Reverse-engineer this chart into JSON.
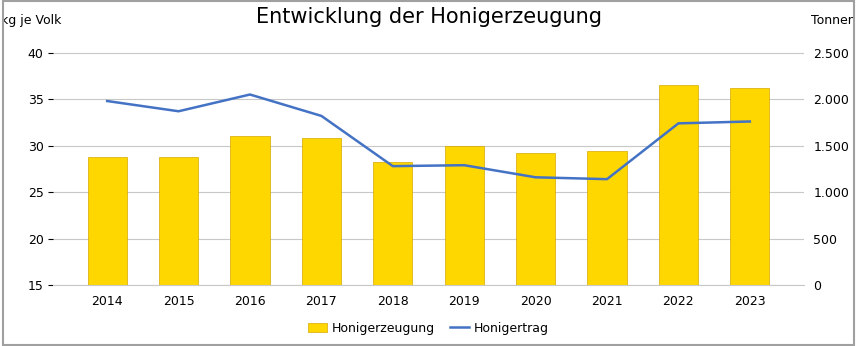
{
  "title": "Entwicklung der Honigerzeugung",
  "ylabel_left": "kg je Volk",
  "ylabel_right": "Tonnen",
  "years": [
    2014,
    2015,
    2016,
    2017,
    2018,
    2019,
    2020,
    2021,
    2022,
    2023
  ],
  "honigerzeugung": [
    28.8,
    28.8,
    31.0,
    30.8,
    28.2,
    30.0,
    29.2,
    29.4,
    36.5,
    36.2
  ],
  "honigertrag": [
    1980,
    1870,
    2050,
    1820,
    1280,
    1290,
    1160,
    1140,
    1740,
    1760
  ],
  "bar_color": "#FFD700",
  "bar_edge_color": "#D4A800",
  "line_color": "#4472C4",
  "ylim_left": [
    15,
    42
  ],
  "ylim_right": [
    0,
    2700
  ],
  "yticks_left": [
    15,
    20,
    25,
    30,
    35,
    40
  ],
  "yticks_right": [
    0,
    500,
    1000,
    1500,
    2000,
    2500
  ],
  "ytick_labels_right": [
    "0",
    "500",
    "1.000",
    "1.500",
    "2.000",
    "2.500"
  ],
  "legend_bar_label": "Honigerzeugung",
  "legend_line_label": "Honigertrag",
  "background_color": "#FFFFFF",
  "grid_color": "#C8C8C8",
  "title_fontsize": 15,
  "tick_fontsize": 9,
  "legend_fontsize": 9,
  "border_color": "#A0A0A0"
}
